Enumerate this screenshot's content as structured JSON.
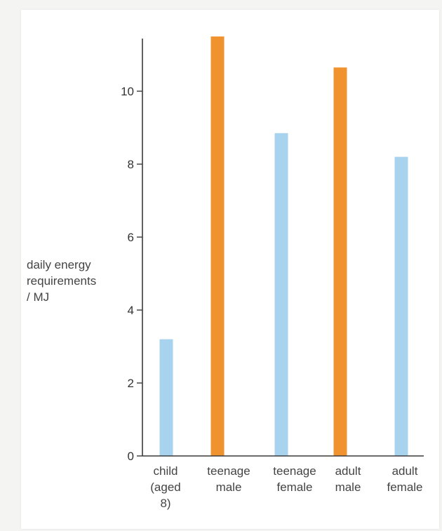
{
  "chart_data": {
    "type": "bar",
    "title": "",
    "xlabel": "",
    "ylabel": [
      "daily energy",
      "requirements",
      "/ MJ"
    ],
    "categories": [
      [
        "child",
        "(aged",
        "8)"
      ],
      [
        "teenage",
        "male"
      ],
      [
        "teenage",
        "female"
      ],
      [
        "adult",
        "male"
      ],
      [
        "adult",
        "female"
      ]
    ],
    "values": [
      3.2,
      11.5,
      8.85,
      10.65,
      8.2
    ],
    "bar_colors": [
      "#a7d3ee",
      "#f0922e",
      "#a7d3ee",
      "#f0922e",
      "#a7d3ee"
    ],
    "ylim": [
      0,
      11.6
    ],
    "yticks": [
      0,
      2,
      4,
      6,
      8,
      10
    ],
    "grid": false,
    "legend": "none"
  }
}
